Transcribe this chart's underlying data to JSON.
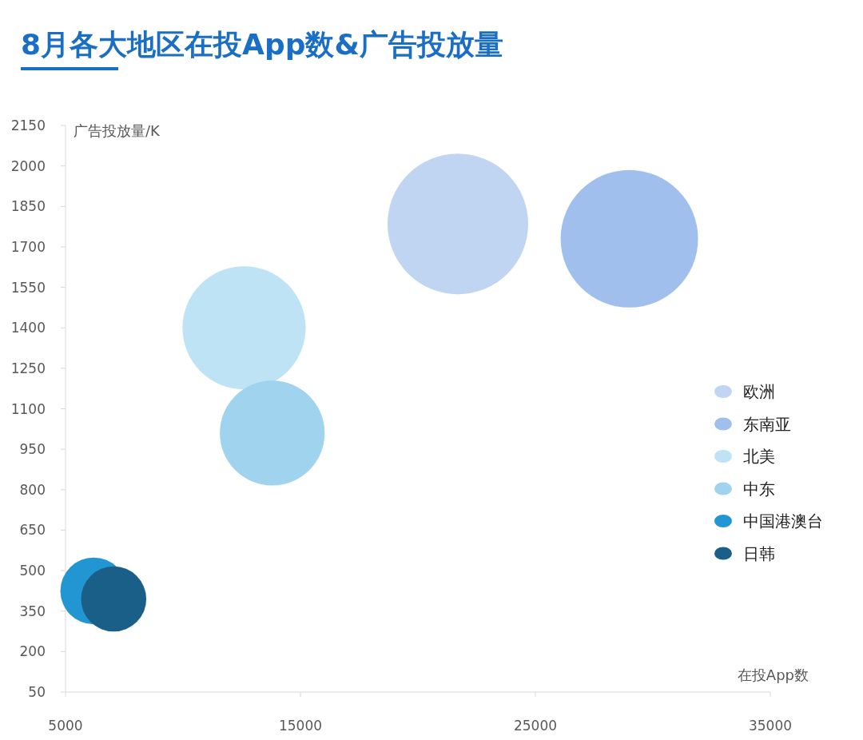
{
  "chart_data": {
    "type": "bubble",
    "title": "8月各大地区在投App数&广告投放量",
    "xlabel": "在投App数",
    "ylabel": "广告投放量/K",
    "xlim": [
      5000,
      35000
    ],
    "xticks": [
      5000,
      15000,
      25000,
      35000
    ],
    "ylim": [
      50,
      2150
    ],
    "yticks": [
      50,
      200,
      350,
      500,
      650,
      800,
      950,
      1100,
      1250,
      1400,
      1550,
      1700,
      1850,
      2000,
      2150
    ],
    "legend": "right",
    "grid": false,
    "series": [
      {
        "name": "欧洲",
        "color": "#c0d5f2",
        "x": [
          21700
        ],
        "values": [
          1785
        ],
        "sizes": [
          1
        ]
      },
      {
        "name": "东南亚",
        "color": "#a0bfec",
        "x": [
          29000
        ],
        "values": [
          1730
        ],
        "sizes": [
          0.955
        ]
      },
      {
        "name": "北美",
        "color": "#bde3f5",
        "x": [
          12600
        ],
        "values": [
          1400
        ],
        "sizes": [
          0.767
        ]
      },
      {
        "name": "中东",
        "color": "#a0d4ee",
        "x": [
          13800
        ],
        "values": [
          1010
        ],
        "sizes": [
          0.556
        ]
      },
      {
        "name": "中国港澳台",
        "color": "#2196d3",
        "x": [
          6200
        ],
        "values": [
          425
        ],
        "sizes": [
          0.225
        ]
      },
      {
        "name": "日韩",
        "color": "#1a5f88",
        "x": [
          7050
        ],
        "values": [
          395
        ],
        "sizes": [
          0.215
        ]
      }
    ]
  }
}
